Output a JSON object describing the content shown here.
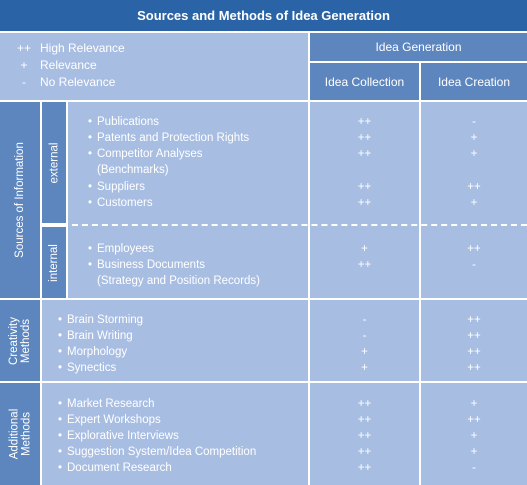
{
  "title": "Sources and Methods of Idea Generation",
  "legend": [
    {
      "symbol": "++",
      "text": "High Relevance"
    },
    {
      "symbol": "+",
      "text": "Relevance"
    },
    {
      "symbol": "-",
      "text": "No Relevance"
    }
  ],
  "headers": {
    "group": "Idea Generation",
    "col1": "Idea Collection",
    "col2": "Idea Creation"
  },
  "sections": {
    "sources": {
      "label": "Sources of Information",
      "external": {
        "label": "external",
        "items": [
          "Publications",
          "Patents and Protection Rights",
          "Competitor Analyses",
          "(Benchmarks)",
          "Suppliers",
          "Customers"
        ],
        "collection": [
          "++",
          "++",
          "++",
          "++",
          "++"
        ],
        "creation": [
          "-",
          "+",
          "+",
          "++",
          "+"
        ]
      },
      "internal": {
        "label": "internal",
        "items": [
          "Employees",
          "Business Documents",
          "(Strategy and Position Records)"
        ],
        "collection": [
          "+",
          "++"
        ],
        "creation": [
          "++",
          "-"
        ]
      }
    },
    "creativity": {
      "label_line1": "Creativity",
      "label_line2": "Methods",
      "items": [
        "Brain Storming",
        "Brain Writing",
        "Morphology",
        "Synectics"
      ],
      "collection": [
        "-",
        "-",
        "+",
        "+"
      ],
      "creation": [
        "++",
        "++",
        "++",
        "++"
      ]
    },
    "additional": {
      "label_line1": "Additional",
      "label_line2": "Methods",
      "items": [
        "Market Research",
        "Expert Workshops",
        "Explorative Interviews",
        "Suggestion System/Idea Competition",
        "Document Research"
      ],
      "collection": [
        "++",
        "++",
        "++",
        "++",
        "++"
      ],
      "creation": [
        "+",
        "++",
        "+",
        "+",
        "-"
      ]
    }
  }
}
